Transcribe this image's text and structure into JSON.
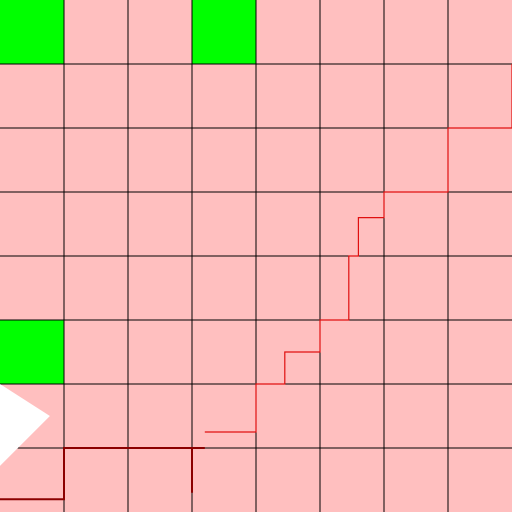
{
  "board": {
    "rows": 8,
    "cols": 8,
    "colors": {
      "cell": "#ffbfbf",
      "green": "#00ff00",
      "grid": "#000000",
      "path_dark": "#8b0000",
      "path_light": "#e01010",
      "agent": "#ffffff"
    },
    "green_cells": [
      {
        "row": 0,
        "col": 0
      },
      {
        "row": 0,
        "col": 3
      },
      {
        "row": 5,
        "col": 0
      }
    ],
    "agent": {
      "row": 6.5,
      "col": 0,
      "facing": "right",
      "icon": "white-triangle-icon"
    },
    "path_dark": [
      [
        0.0,
        7.8
      ],
      [
        1.0,
        7.8
      ],
      [
        1.0,
        7.0
      ],
      [
        3.0,
        7.0
      ],
      [
        3.0,
        7.7
      ],
      [
        3.0,
        7.0
      ],
      [
        3.2,
        7.0
      ]
    ],
    "path_light": [
      [
        3.2,
        6.75
      ],
      [
        4.0,
        6.75
      ],
      [
        4.0,
        6.0
      ],
      [
        4.45,
        6.0
      ],
      [
        4.45,
        5.5
      ],
      [
        5.0,
        5.5
      ],
      [
        5.0,
        5.0
      ],
      [
        5.45,
        5.0
      ],
      [
        5.45,
        4.0
      ],
      [
        5.6,
        4.0
      ],
      [
        5.6,
        3.4
      ],
      [
        6.0,
        3.4
      ],
      [
        6.0,
        3.0
      ],
      [
        7.0,
        3.0
      ],
      [
        7.0,
        2.0
      ],
      [
        8.0,
        2.0
      ],
      [
        8.0,
        1.0
      ]
    ]
  }
}
